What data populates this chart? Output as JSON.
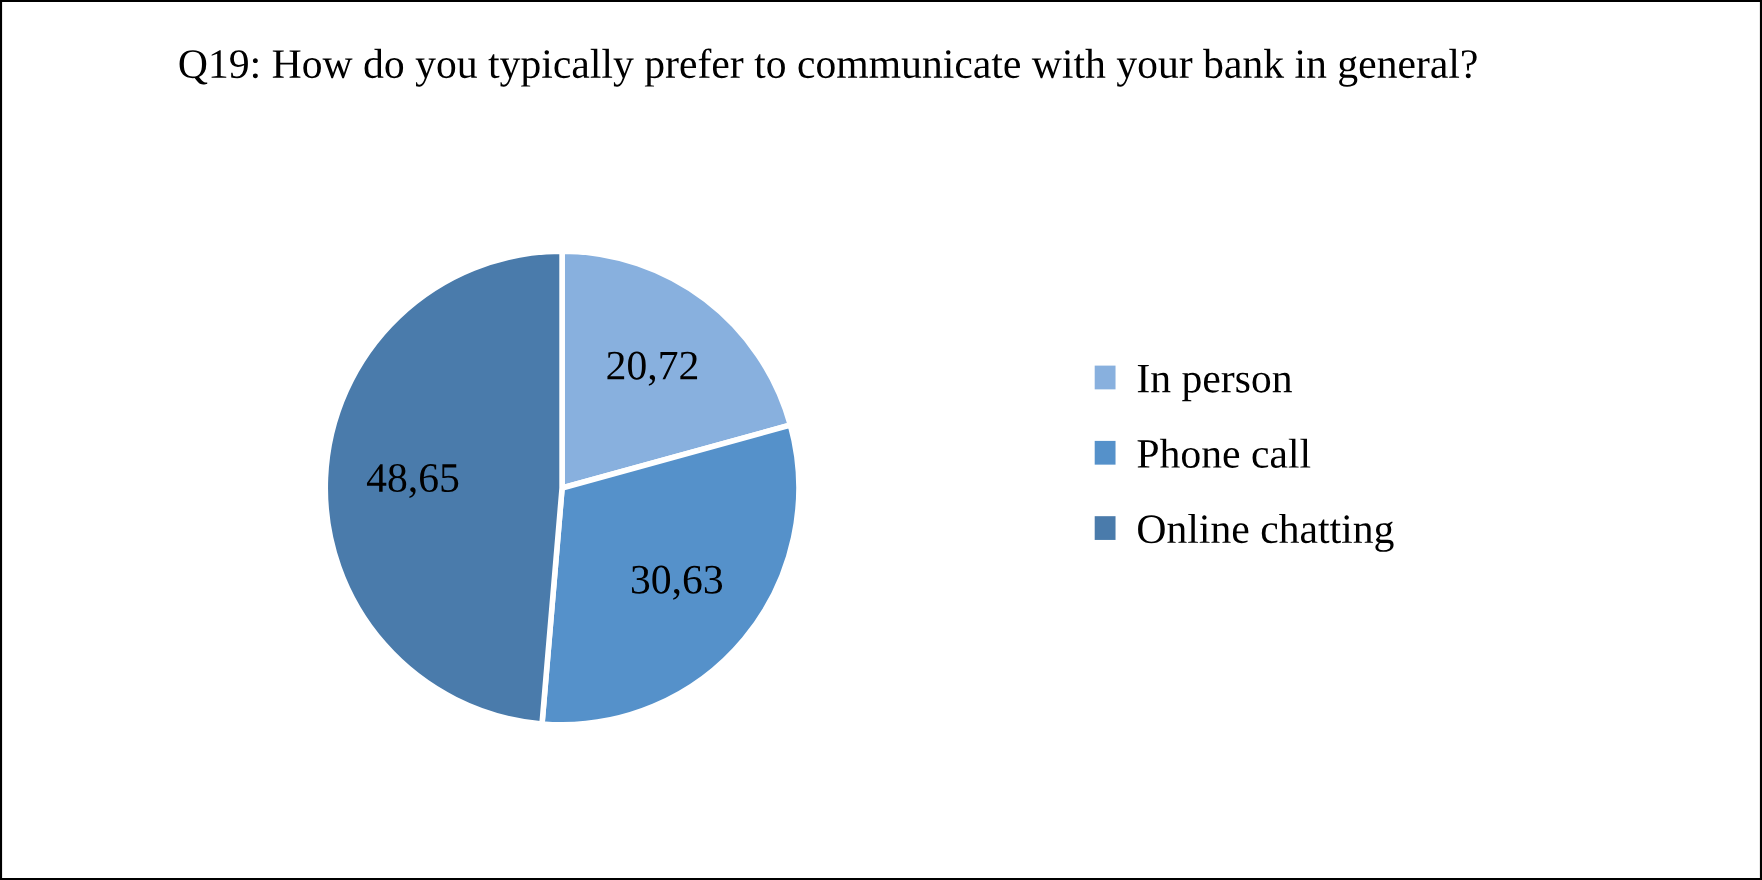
{
  "chart_data": {
    "type": "pie",
    "title": "Q19: How do you typically prefer to communicate with your bank in general?",
    "categories": [
      "In person",
      "Phone call",
      "Online chatting"
    ],
    "values": [
      20.72,
      30.63,
      48.65
    ],
    "value_labels": [
      "20,72",
      "30,63",
      "48,65"
    ],
    "colors": [
      "#88b0de",
      "#5591ca",
      "#4a7bab"
    ],
    "legend": "right"
  }
}
